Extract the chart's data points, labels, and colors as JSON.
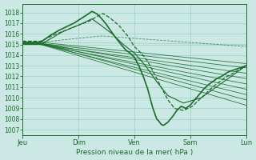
{
  "title": "",
  "xlabel": "Pression niveau de la mer( hPa )",
  "ylabel": "",
  "bg_color": "#cce8e4",
  "plot_bg_color": "#cce8e4",
  "grid_color": "#88ccc4",
  "line_color": "#1a6b2a",
  "ylim": [
    1006.5,
    1018.8
  ],
  "yticks": [
    1007,
    1008,
    1009,
    1010,
    1011,
    1012,
    1013,
    1014,
    1015,
    1016,
    1017,
    1018
  ],
  "xtick_labels": [
    "Jeu",
    "Dim",
    "Ven",
    "Sam",
    "Lun"
  ],
  "xtick_positions": [
    0.0,
    0.25,
    0.5,
    0.75,
    1.0
  ]
}
